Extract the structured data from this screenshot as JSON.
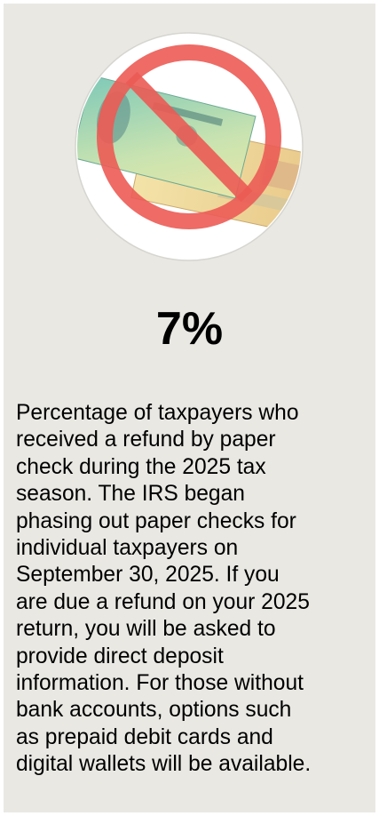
{
  "stat": "7%",
  "description_lines": [
    "Percentage of taxpayers who",
    "received a refund by paper",
    "check during the 2025 tax",
    "season. The IRS began",
    "phasing out paper checks for",
    "individual taxpayers on",
    "September 30, 2025. If you",
    "are due a refund on your 2025",
    "return, you will be asked to",
    "provide direct deposit",
    "information. For those without",
    "bank accounts, options such",
    "as prepaid debit cards and",
    "digital wallets will be available."
  ]
}
